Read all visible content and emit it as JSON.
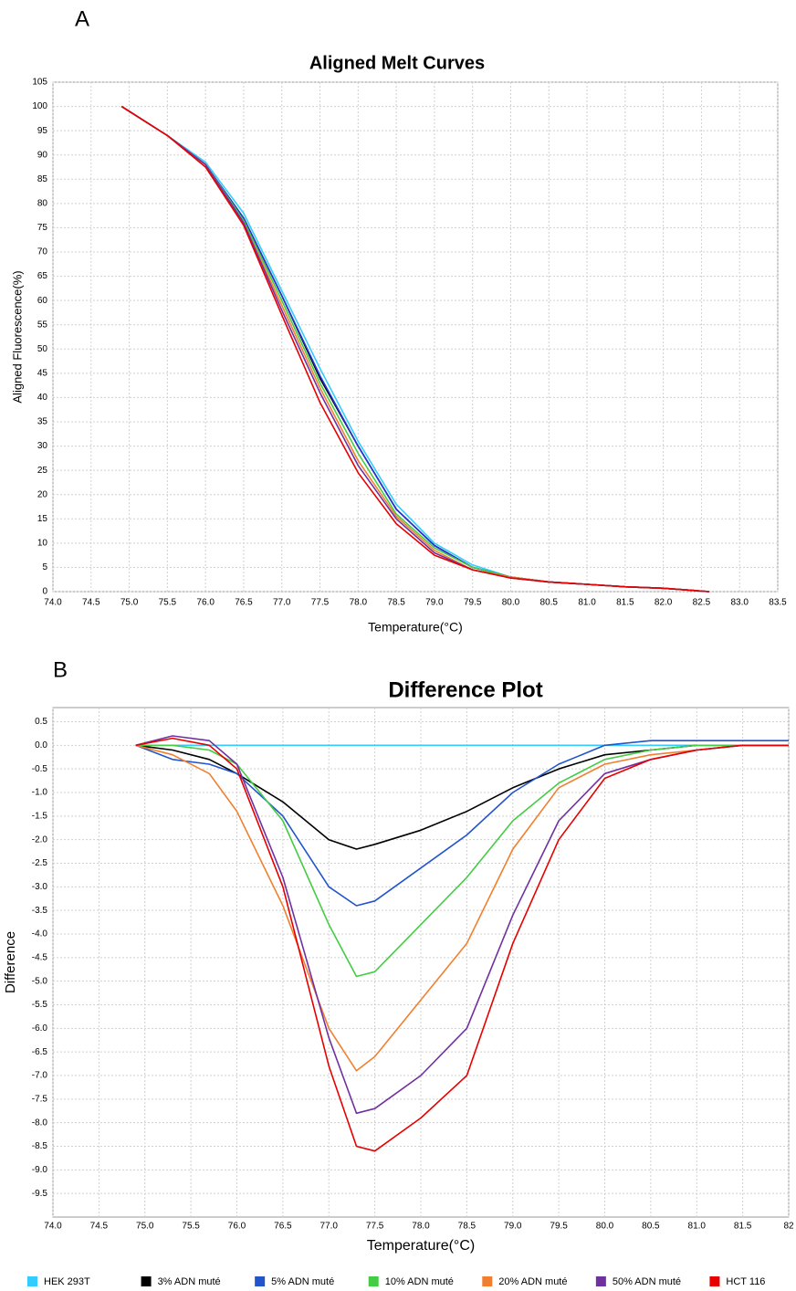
{
  "chart_data": [
    {
      "type": "line",
      "label": "A",
      "title": "Aligned Melt Curves",
      "xlabel": "Temperature(°C)",
      "ylabel": "Aligned Fluorescence(%)",
      "x": [
        74.9,
        75.5,
        76.0,
        76.5,
        77.0,
        77.5,
        78.0,
        78.5,
        79.0,
        79.5,
        80.0,
        80.5,
        81.0,
        81.5,
        82.0,
        82.6
      ],
      "series": [
        {
          "color": "#33ccff",
          "values": [
            100,
            94,
            88.5,
            78,
            62,
            46,
            31,
            18,
            10,
            5.5,
            3,
            2,
            1.5,
            1,
            0.7,
            0
          ]
        },
        {
          "color": "#000000",
          "values": [
            100,
            94,
            88,
            77,
            61,
            44,
            30,
            17,
            9.5,
            5,
            3,
            2,
            1.5,
            1,
            0.7,
            0
          ]
        },
        {
          "color": "#2233dd",
          "values": [
            100,
            94,
            88,
            77,
            61,
            44.5,
            30,
            17,
            9.5,
            5,
            3,
            2,
            1.5,
            1,
            0.7,
            0
          ]
        },
        {
          "color": "#44cc44",
          "values": [
            100,
            94,
            88,
            76.5,
            60,
            43,
            28.5,
            16,
            9,
            5,
            3,
            2,
            1.5,
            1,
            0.7,
            0
          ]
        },
        {
          "color": "#f08030",
          "values": [
            100,
            94,
            88,
            76,
            59,
            42,
            27,
            15.5,
            8.5,
            4.5,
            3,
            2,
            1.5,
            1,
            0.7,
            0
          ]
        },
        {
          "color": "#7030a0",
          "values": [
            100,
            94,
            88,
            76,
            58,
            41,
            26,
            15,
            8,
            4.5,
            2.8,
            2,
            1.5,
            1,
            0.7,
            0
          ]
        },
        {
          "color": "#e60000",
          "values": [
            100,
            94,
            87.5,
            75.5,
            57,
            39,
            24.5,
            14,
            7.5,
            4.5,
            2.8,
            2,
            1.5,
            1,
            0.7,
            0
          ]
        }
      ],
      "xlim": [
        74,
        83.5
      ],
      "xticks": [
        {
          "value": 74,
          "label": "74.0"
        },
        74.5,
        {
          "value": 75,
          "label": "75.0"
        },
        75.5,
        {
          "value": 76,
          "label": "76.0"
        },
        76.5,
        {
          "value": 77,
          "label": "77.0"
        },
        77.5,
        {
          "value": 78,
          "label": "78.0"
        },
        78.5,
        {
          "value": 79,
          "label": "79.0"
        },
        79.5,
        {
          "value": 80,
          "label": "80.0"
        },
        80.5,
        {
          "value": 81,
          "label": "81.0"
        },
        81.5,
        {
          "value": 82,
          "label": "82.0"
        },
        82.5,
        {
          "value": 83,
          "label": "83.0"
        },
        83.5
      ],
      "ylim": [
        0,
        105
      ],
      "yticks": [
        0,
        5,
        10,
        15,
        20,
        25,
        30,
        35,
        40,
        45,
        50,
        55,
        60,
        65,
        70,
        75,
        80,
        85,
        90,
        95,
        100,
        105
      ],
      "grid": true
    },
    {
      "type": "line",
      "label": "B",
      "title": "Difference Plot",
      "xlabel": "Temperature(°C)",
      "ylabel": "Difference",
      "x": [
        74.9,
        75.3,
        75.7,
        76.0,
        76.5,
        77.0,
        77.3,
        77.5,
        78.0,
        78.5,
        79.0,
        79.5,
        80.0,
        80.5,
        81.0,
        81.5,
        82.0
      ],
      "series": [
        {
          "name": "HEK 293T",
          "color": "#33ccff",
          "values": [
            0,
            0,
            0,
            0,
            0,
            0,
            0,
            0,
            0,
            0,
            0,
            0,
            0,
            0,
            0,
            0,
            0
          ]
        },
        {
          "name": "3% ADN muté",
          "color": "#000000",
          "values": [
            0,
            -0.1,
            -0.3,
            -0.6,
            -1.2,
            -2.0,
            -2.2,
            -2.1,
            -1.8,
            -1.4,
            -0.9,
            -0.5,
            -0.2,
            -0.1,
            0,
            0,
            0
          ]
        },
        {
          "name": "5% ADN muté",
          "color": "#2255cc",
          "values": [
            0,
            -0.3,
            -0.4,
            -0.6,
            -1.5,
            -3.0,
            -3.4,
            -3.3,
            -2.6,
            -1.9,
            -1.0,
            -0.4,
            0,
            0.1,
            0.1,
            0.1,
            0.1
          ]
        },
        {
          "name": "10% ADN muté",
          "color": "#44cc44",
          "values": [
            0,
            0,
            -0.1,
            -0.4,
            -1.6,
            -3.8,
            -4.9,
            -4.8,
            -3.8,
            -2.8,
            -1.6,
            -0.8,
            -0.3,
            -0.1,
            0,
            0,
            0
          ]
        },
        {
          "name": "20% ADN muté",
          "color": "#f08030",
          "values": [
            0,
            -0.2,
            -0.6,
            -1.4,
            -3.4,
            -6.0,
            -6.9,
            -6.6,
            -5.4,
            -4.2,
            -2.2,
            -0.9,
            -0.4,
            -0.2,
            -0.1,
            0,
            0
          ]
        },
        {
          "name": "50% ADN muté",
          "color": "#7030a0",
          "values": [
            0,
            0.2,
            0.1,
            -0.4,
            -2.8,
            -6.2,
            -7.8,
            -7.7,
            -7.0,
            -6.0,
            -3.6,
            -1.6,
            -0.6,
            -0.3,
            -0.1,
            0,
            0
          ]
        },
        {
          "name": "HCT 116",
          "color": "#e60000",
          "values": [
            0,
            0.15,
            0,
            -0.5,
            -3.0,
            -6.8,
            -8.5,
            -8.6,
            -7.9,
            -7.0,
            -4.2,
            -2.0,
            -0.7,
            -0.3,
            -0.1,
            0,
            0
          ]
        }
      ],
      "xlim": [
        74,
        82
      ],
      "xticks": [
        {
          "value": 74,
          "label": "74.0"
        },
        74.5,
        {
          "value": 75,
          "label": "75.0"
        },
        75.5,
        {
          "value": 76,
          "label": "76.0"
        },
        76.5,
        {
          "value": 77,
          "label": "77.0"
        },
        77.5,
        {
          "value": 78,
          "label": "78.0"
        },
        78.5,
        {
          "value": 79,
          "label": "79.0"
        },
        79.5,
        {
          "value": 80,
          "label": "80.0"
        },
        80.5,
        {
          "value": 81,
          "label": "81.0"
        },
        81.5,
        {
          "value": 82,
          "label": "82"
        }
      ],
      "ylim": [
        -10,
        0.8
      ],
      "yticks": [
        0.5,
        {
          "value": 0,
          "label": "0.0"
        },
        -0.5,
        {
          "value": -1,
          "label": "-1.0"
        },
        -1.5,
        {
          "value": -2,
          "label": "-2.0"
        },
        -2.5,
        {
          "value": -3,
          "label": "-3.0"
        },
        -3.5,
        {
          "value": -4,
          "label": "-4.0"
        },
        -4.5,
        {
          "value": -5,
          "label": "-5.0"
        },
        -5.5,
        {
          "value": -6,
          "label": "-6.0"
        },
        -6.5,
        {
          "value": -7,
          "label": "-7.0"
        },
        -7.5,
        {
          "value": -8,
          "label": "-8.0"
        },
        -8.5,
        {
          "value": -9,
          "label": "-9.0"
        },
        -9.5
      ],
      "grid": true
    }
  ]
}
